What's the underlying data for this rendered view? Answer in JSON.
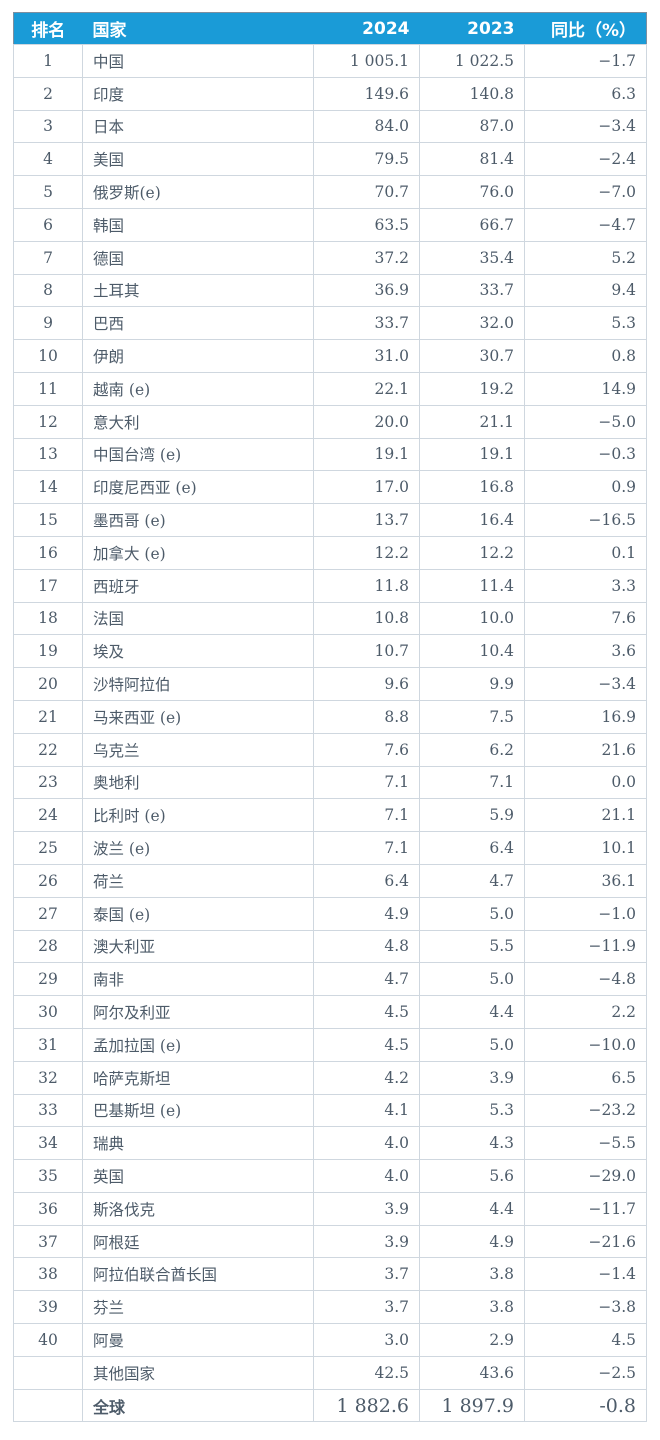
{
  "colors": {
    "header_bg": "#1a9bd7",
    "header_text": "#ffffff",
    "body_text": "#4d5b69"
  },
  "headers": {
    "rank": "排名",
    "country": "国家",
    "y2024": "2024",
    "y2023": "2023",
    "yoy": "同比（%）"
  },
  "rows": [
    [
      "1",
      "中国",
      "1 005.1",
      "1 022.5",
      "−1.7"
    ],
    [
      "2",
      "印度",
      "149.6",
      "140.8",
      "6.3"
    ],
    [
      "3",
      "日本",
      "84.0",
      "87.0",
      "−3.4"
    ],
    [
      "4",
      "美国",
      "79.5",
      "81.4",
      "−2.4"
    ],
    [
      "5",
      "俄罗斯(e)",
      "70.7",
      "76.0",
      "−7.0"
    ],
    [
      "6",
      "韩国",
      "63.5",
      "66.7",
      "−4.7"
    ],
    [
      "7",
      "德国",
      "37.2",
      "35.4",
      "5.2"
    ],
    [
      "8",
      "土耳其",
      "36.9",
      "33.7",
      "9.4"
    ],
    [
      "9",
      "巴西",
      "33.7",
      "32.0",
      "5.3"
    ],
    [
      "10",
      "伊朗",
      "31.0",
      "30.7",
      "0.8"
    ],
    [
      "11",
      "越南 (e)",
      "22.1",
      "19.2",
      "14.9"
    ],
    [
      "12",
      "意大利",
      "20.0",
      "21.1",
      "−5.0"
    ],
    [
      "13",
      "中国台湾 (e)",
      "19.1",
      "19.1",
      "−0.3"
    ],
    [
      "14",
      "印度尼西亚 (e)",
      "17.0",
      "16.8",
      "0.9"
    ],
    [
      "15",
      "墨西哥 (e)",
      "13.7",
      "16.4",
      "−16.5"
    ],
    [
      "16",
      "加拿大 (e)",
      "12.2",
      "12.2",
      "0.1"
    ],
    [
      "17",
      "西班牙",
      "11.8",
      "11.4",
      "3.3"
    ],
    [
      "18",
      "法国",
      "10.8",
      "10.0",
      "7.6"
    ],
    [
      "19",
      "埃及",
      "10.7",
      "10.4",
      "3.6"
    ],
    [
      "20",
      "沙特阿拉伯",
      "9.6",
      "9.9",
      "−3.4"
    ],
    [
      "21",
      "马来西亚 (e)",
      "8.8",
      "7.5",
      "16.9"
    ],
    [
      "22",
      "乌克兰",
      "7.6",
      "6.2",
      "21.6"
    ],
    [
      "23",
      "奥地利",
      "7.1",
      "7.1",
      "0.0"
    ],
    [
      "24",
      "比利时 (e)",
      "7.1",
      "5.9",
      "21.1"
    ],
    [
      "25",
      "波兰 (e)",
      "7.1",
      "6.4",
      "10.1"
    ],
    [
      "26",
      "荷兰",
      "6.4",
      "4.7",
      "36.1"
    ],
    [
      "27",
      "泰国 (e)",
      "4.9",
      "5.0",
      "−1.0"
    ],
    [
      "28",
      "澳大利亚",
      "4.8",
      "5.5",
      "−11.9"
    ],
    [
      "29",
      "南非",
      "4.7",
      "5.0",
      "−4.8"
    ],
    [
      "30",
      "阿尔及利亚",
      "4.5",
      "4.4",
      "2.2"
    ],
    [
      "31",
      "孟加拉国 (e)",
      "4.5",
      "5.0",
      "−10.0"
    ],
    [
      "32",
      "哈萨克斯坦",
      "4.2",
      "3.9",
      "6.5"
    ],
    [
      "33",
      "巴基斯坦 (e)",
      "4.1",
      "5.3",
      "−23.2"
    ],
    [
      "34",
      "瑞典",
      "4.0",
      "4.3",
      "−5.5"
    ],
    [
      "35",
      "英国",
      "4.0",
      "5.6",
      "−29.0"
    ],
    [
      "36",
      "斯洛伐克",
      "3.9",
      "4.4",
      "−11.7"
    ],
    [
      "37",
      "阿根廷",
      "3.9",
      "4.9",
      "−21.6"
    ],
    [
      "38",
      "阿拉伯联合酋长国",
      "3.7",
      "3.8",
      "−1.4"
    ],
    [
      "39",
      "芬兰",
      "3.7",
      "3.8",
      "−3.8"
    ],
    [
      "40",
      "阿曼",
      "3.0",
      "2.9",
      "4.5"
    ],
    [
      "",
      "其他国家",
      "42.5",
      "43.6",
      "−2.5"
    ]
  ],
  "total": [
    "",
    "全球",
    "1 882.6",
    "1 897.9",
    "-0.8"
  ]
}
